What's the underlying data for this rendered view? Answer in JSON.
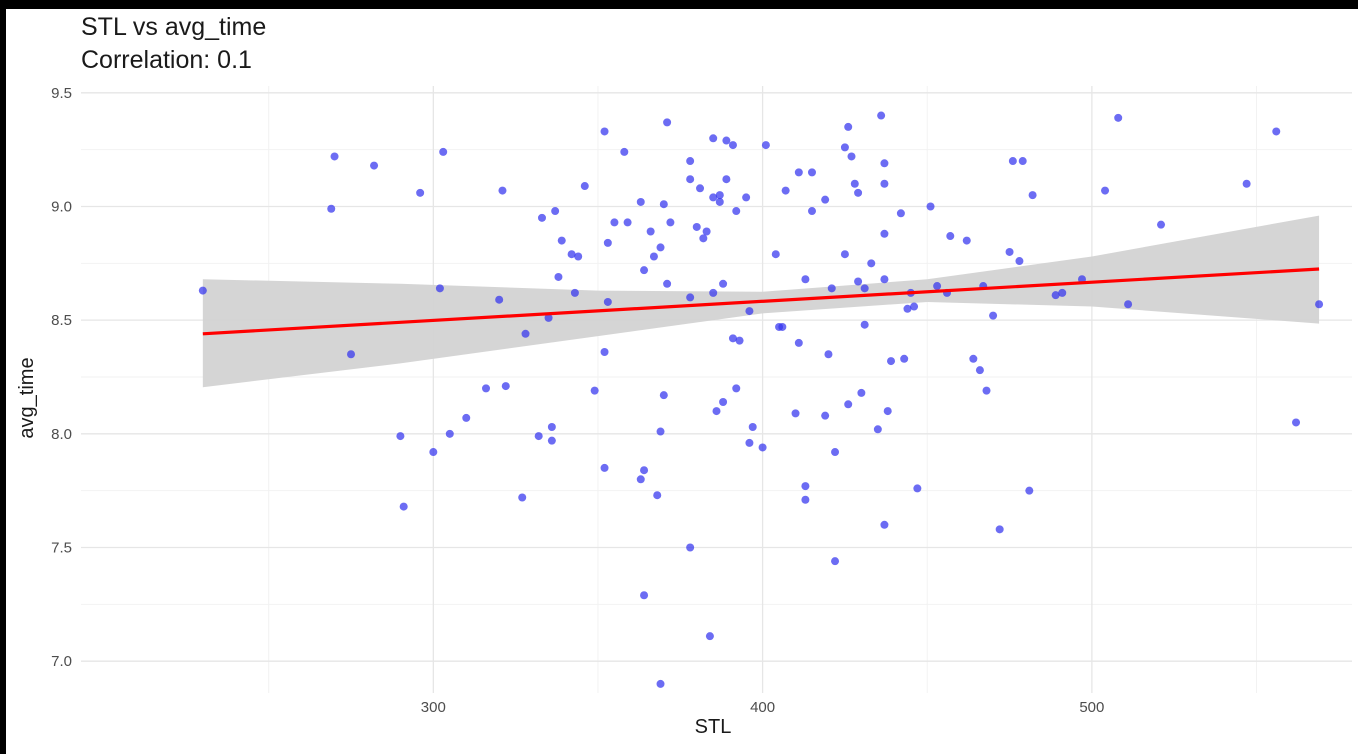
{
  "title": "STL vs avg_time",
  "subtitle": "Correlation: 0.1",
  "chart_data": {
    "type": "scatter",
    "xlabel": "STL",
    "ylabel": "avg_time",
    "xlim": [
      193,
      579
    ],
    "ylim": [
      6.86,
      9.53
    ],
    "x_ticks": [
      300,
      400,
      500
    ],
    "y_ticks": [
      7.0,
      7.5,
      8.0,
      8.5,
      9.0,
      9.5
    ],
    "grid": true,
    "point_color": "#3333ee",
    "fit_color": "#ff0000",
    "band_color": "#d3d3d3",
    "fit": {
      "x": [
        230,
        569
      ],
      "y": [
        8.44,
        8.725
      ]
    },
    "band": {
      "x": [
        230,
        290,
        350,
        400,
        450,
        500,
        569
      ],
      "upper": [
        8.68,
        8.66,
        8.63,
        8.625,
        8.68,
        8.78,
        8.96
      ],
      "lower": [
        8.205,
        8.31,
        8.43,
        8.53,
        8.58,
        8.56,
        8.485
      ]
    },
    "points": [
      [
        230,
        8.63
      ],
      [
        269,
        8.99
      ],
      [
        270,
        9.22
      ],
      [
        275,
        8.35
      ],
      [
        282,
        9.18
      ],
      [
        290,
        7.99
      ],
      [
        291,
        7.68
      ],
      [
        296,
        9.06
      ],
      [
        300,
        7.92
      ],
      [
        302,
        8.64
      ],
      [
        303,
        9.24
      ],
      [
        305,
        8.0
      ],
      [
        310,
        8.07
      ],
      [
        316,
        8.2
      ],
      [
        320,
        8.59
      ],
      [
        321,
        9.07
      ],
      [
        322,
        8.21
      ],
      [
        327,
        7.72
      ],
      [
        328,
        8.44
      ],
      [
        332,
        7.99
      ],
      [
        333,
        8.95
      ],
      [
        335,
        8.51
      ],
      [
        336,
        8.03
      ],
      [
        336,
        7.97
      ],
      [
        337,
        8.98
      ],
      [
        338,
        8.69
      ],
      [
        339,
        8.85
      ],
      [
        342,
        8.79
      ],
      [
        343,
        8.62
      ],
      [
        344,
        8.78
      ],
      [
        346,
        9.09
      ],
      [
        349,
        8.19
      ],
      [
        352,
        9.33
      ],
      [
        352,
        8.36
      ],
      [
        352,
        7.85
      ],
      [
        353,
        8.84
      ],
      [
        353,
        8.58
      ],
      [
        355,
        8.93
      ],
      [
        358,
        9.24
      ],
      [
        359,
        8.93
      ],
      [
        363,
        9.02
      ],
      [
        363,
        7.8
      ],
      [
        364,
        8.72
      ],
      [
        364,
        7.84
      ],
      [
        364,
        7.29
      ],
      [
        366,
        8.89
      ],
      [
        367,
        8.78
      ],
      [
        368,
        7.73
      ],
      [
        369,
        8.82
      ],
      [
        369,
        8.01
      ],
      [
        369,
        6.9
      ],
      [
        370,
        9.01
      ],
      [
        370,
        8.17
      ],
      [
        371,
        9.37
      ],
      [
        371,
        8.66
      ],
      [
        372,
        8.93
      ],
      [
        378,
        9.2
      ],
      [
        378,
        9.12
      ],
      [
        378,
        8.6
      ],
      [
        378,
        7.5
      ],
      [
        380,
        8.91
      ],
      [
        381,
        9.08
      ],
      [
        382,
        8.86
      ],
      [
        383,
        8.89
      ],
      [
        384,
        7.11
      ],
      [
        385,
        9.3
      ],
      [
        385,
        9.04
      ],
      [
        385,
        8.62
      ],
      [
        386,
        8.1
      ],
      [
        387,
        9.05
      ],
      [
        387,
        9.02
      ],
      [
        388,
        8.66
      ],
      [
        388,
        8.14
      ],
      [
        389,
        9.29
      ],
      [
        389,
        9.12
      ],
      [
        391,
        9.27
      ],
      [
        391,
        8.42
      ],
      [
        392,
        8.98
      ],
      [
        392,
        8.2
      ],
      [
        393,
        8.41
      ],
      [
        395,
        9.04
      ],
      [
        396,
        8.54
      ],
      [
        396,
        7.96
      ],
      [
        397,
        8.03
      ],
      [
        400,
        7.94
      ],
      [
        401,
        9.27
      ],
      [
        404,
        8.79
      ],
      [
        405,
        8.47
      ],
      [
        406,
        8.47
      ],
      [
        407,
        9.07
      ],
      [
        410,
        8.09
      ],
      [
        411,
        9.15
      ],
      [
        411,
        8.4
      ],
      [
        413,
        8.68
      ],
      [
        413,
        7.77
      ],
      [
        413,
        7.71
      ],
      [
        415,
        9.15
      ],
      [
        415,
        8.98
      ],
      [
        419,
        9.03
      ],
      [
        419,
        8.08
      ],
      [
        420,
        8.35
      ],
      [
        421,
        8.64
      ],
      [
        422,
        7.92
      ],
      [
        422,
        7.44
      ],
      [
        425,
        9.26
      ],
      [
        425,
        8.79
      ],
      [
        426,
        9.35
      ],
      [
        426,
        8.13
      ],
      [
        427,
        9.22
      ],
      [
        428,
        9.1
      ],
      [
        429,
        9.06
      ],
      [
        429,
        8.67
      ],
      [
        430,
        8.18
      ],
      [
        431,
        8.64
      ],
      [
        431,
        8.48
      ],
      [
        433,
        8.75
      ],
      [
        435,
        8.02
      ],
      [
        436,
        9.4
      ],
      [
        437,
        9.19
      ],
      [
        437,
        9.1
      ],
      [
        437,
        8.88
      ],
      [
        437,
        8.68
      ],
      [
        437,
        7.6
      ],
      [
        438,
        8.1
      ],
      [
        439,
        8.32
      ],
      [
        442,
        8.97
      ],
      [
        443,
        8.33
      ],
      [
        444,
        8.55
      ],
      [
        445,
        8.62
      ],
      [
        446,
        8.56
      ],
      [
        447,
        7.76
      ],
      [
        451,
        9.0
      ],
      [
        453,
        8.65
      ],
      [
        456,
        8.62
      ],
      [
        457,
        8.87
      ],
      [
        462,
        8.85
      ],
      [
        464,
        8.33
      ],
      [
        466,
        8.28
      ],
      [
        467,
        8.65
      ],
      [
        468,
        8.19
      ],
      [
        470,
        8.52
      ],
      [
        472,
        7.58
      ],
      [
        475,
        8.8
      ],
      [
        476,
        9.2
      ],
      [
        478,
        8.76
      ],
      [
        479,
        9.2
      ],
      [
        481,
        7.75
      ],
      [
        482,
        9.05
      ],
      [
        489,
        8.61
      ],
      [
        491,
        8.62
      ],
      [
        497,
        8.68
      ],
      [
        504,
        9.07
      ],
      [
        508,
        9.39
      ],
      [
        511,
        8.57
      ],
      [
        521,
        8.92
      ],
      [
        547,
        9.1
      ],
      [
        556,
        9.33
      ],
      [
        562,
        8.05
      ],
      [
        569,
        8.57
      ]
    ]
  }
}
